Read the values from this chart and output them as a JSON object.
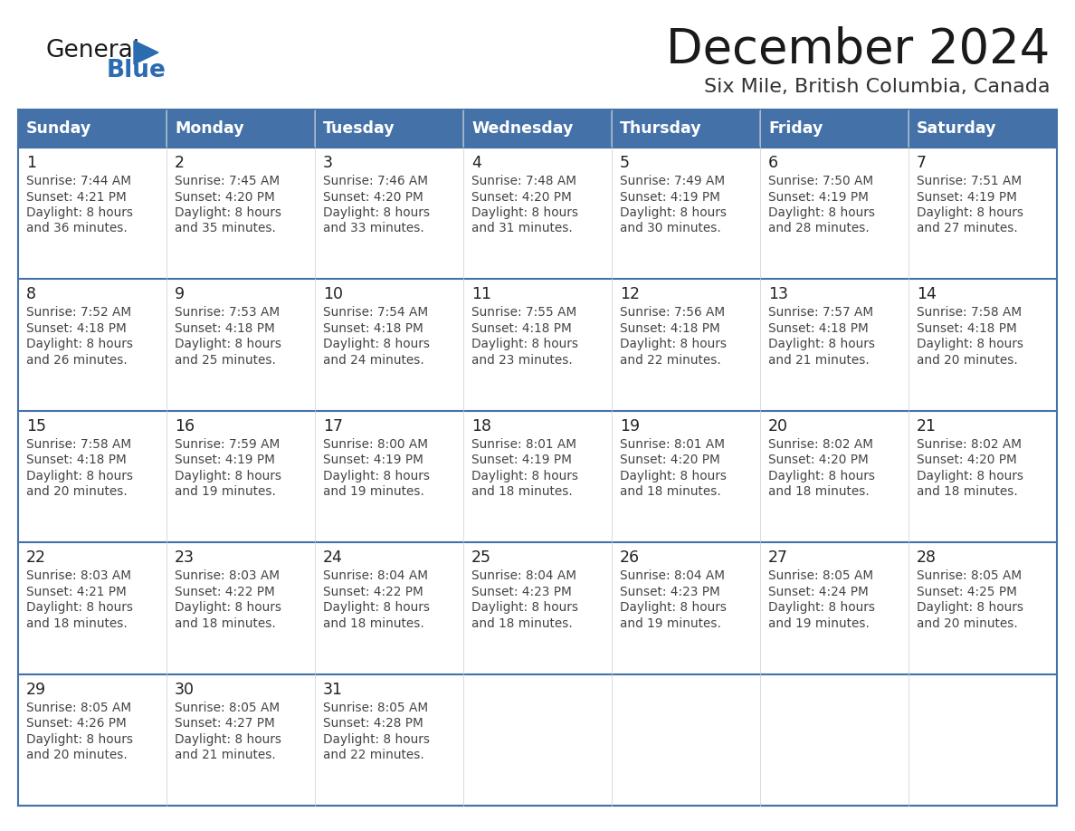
{
  "title": "December 2024",
  "subtitle": "Six Mile, British Columbia, Canada",
  "days_of_week": [
    "Sunday",
    "Monday",
    "Tuesday",
    "Wednesday",
    "Thursday",
    "Friday",
    "Saturday"
  ],
  "header_bg_color": "#4472A8",
  "header_text_color": "#FFFFFF",
  "cell_bg_white": "#FFFFFF",
  "cell_bg_light": "#F0F4F8",
  "day_num_color": "#222222",
  "info_text_color": "#444444",
  "border_color": "#4472A8",
  "row_divider_color": "#4472A8",
  "title_color": "#1a1a1a",
  "subtitle_color": "#333333",
  "logo_general_color": "#1a1a1a",
  "logo_blue_color": "#2B6CB0",
  "logo_triangle_color": "#2B6CB0",
  "calendar_data": [
    [
      {
        "day": 1,
        "sunrise": "7:44 AM",
        "sunset": "4:21 PM",
        "daylight": "8 hours and 36 minutes"
      },
      {
        "day": 2,
        "sunrise": "7:45 AM",
        "sunset": "4:20 PM",
        "daylight": "8 hours and 35 minutes"
      },
      {
        "day": 3,
        "sunrise": "7:46 AM",
        "sunset": "4:20 PM",
        "daylight": "8 hours and 33 minutes"
      },
      {
        "day": 4,
        "sunrise": "7:48 AM",
        "sunset": "4:20 PM",
        "daylight": "8 hours and 31 minutes"
      },
      {
        "day": 5,
        "sunrise": "7:49 AM",
        "sunset": "4:19 PM",
        "daylight": "8 hours and 30 minutes"
      },
      {
        "day": 6,
        "sunrise": "7:50 AM",
        "sunset": "4:19 PM",
        "daylight": "8 hours and 28 minutes"
      },
      {
        "day": 7,
        "sunrise": "7:51 AM",
        "sunset": "4:19 PM",
        "daylight": "8 hours and 27 minutes"
      }
    ],
    [
      {
        "day": 8,
        "sunrise": "7:52 AM",
        "sunset": "4:18 PM",
        "daylight": "8 hours and 26 minutes"
      },
      {
        "day": 9,
        "sunrise": "7:53 AM",
        "sunset": "4:18 PM",
        "daylight": "8 hours and 25 minutes"
      },
      {
        "day": 10,
        "sunrise": "7:54 AM",
        "sunset": "4:18 PM",
        "daylight": "8 hours and 24 minutes"
      },
      {
        "day": 11,
        "sunrise": "7:55 AM",
        "sunset": "4:18 PM",
        "daylight": "8 hours and 23 minutes"
      },
      {
        "day": 12,
        "sunrise": "7:56 AM",
        "sunset": "4:18 PM",
        "daylight": "8 hours and 22 minutes"
      },
      {
        "day": 13,
        "sunrise": "7:57 AM",
        "sunset": "4:18 PM",
        "daylight": "8 hours and 21 minutes"
      },
      {
        "day": 14,
        "sunrise": "7:58 AM",
        "sunset": "4:18 PM",
        "daylight": "8 hours and 20 minutes"
      }
    ],
    [
      {
        "day": 15,
        "sunrise": "7:58 AM",
        "sunset": "4:18 PM",
        "daylight": "8 hours and 20 minutes"
      },
      {
        "day": 16,
        "sunrise": "7:59 AM",
        "sunset": "4:19 PM",
        "daylight": "8 hours and 19 minutes"
      },
      {
        "day": 17,
        "sunrise": "8:00 AM",
        "sunset": "4:19 PM",
        "daylight": "8 hours and 19 minutes"
      },
      {
        "day": 18,
        "sunrise": "8:01 AM",
        "sunset": "4:19 PM",
        "daylight": "8 hours and 18 minutes"
      },
      {
        "day": 19,
        "sunrise": "8:01 AM",
        "sunset": "4:20 PM",
        "daylight": "8 hours and 18 minutes"
      },
      {
        "day": 20,
        "sunrise": "8:02 AM",
        "sunset": "4:20 PM",
        "daylight": "8 hours and 18 minutes"
      },
      {
        "day": 21,
        "sunrise": "8:02 AM",
        "sunset": "4:20 PM",
        "daylight": "8 hours and 18 minutes"
      }
    ],
    [
      {
        "day": 22,
        "sunrise": "8:03 AM",
        "sunset": "4:21 PM",
        "daylight": "8 hours and 18 minutes"
      },
      {
        "day": 23,
        "sunrise": "8:03 AM",
        "sunset": "4:22 PM",
        "daylight": "8 hours and 18 minutes"
      },
      {
        "day": 24,
        "sunrise": "8:04 AM",
        "sunset": "4:22 PM",
        "daylight": "8 hours and 18 minutes"
      },
      {
        "day": 25,
        "sunrise": "8:04 AM",
        "sunset": "4:23 PM",
        "daylight": "8 hours and 18 minutes"
      },
      {
        "day": 26,
        "sunrise": "8:04 AM",
        "sunset": "4:23 PM",
        "daylight": "8 hours and 19 minutes"
      },
      {
        "day": 27,
        "sunrise": "8:05 AM",
        "sunset": "4:24 PM",
        "daylight": "8 hours and 19 minutes"
      },
      {
        "day": 28,
        "sunrise": "8:05 AM",
        "sunset": "4:25 PM",
        "daylight": "8 hours and 20 minutes"
      }
    ],
    [
      {
        "day": 29,
        "sunrise": "8:05 AM",
        "sunset": "4:26 PM",
        "daylight": "8 hours and 20 minutes"
      },
      {
        "day": 30,
        "sunrise": "8:05 AM",
        "sunset": "4:27 PM",
        "daylight": "8 hours and 21 minutes"
      },
      {
        "day": 31,
        "sunrise": "8:05 AM",
        "sunset": "4:28 PM",
        "daylight": "8 hours and 22 minutes"
      },
      null,
      null,
      null,
      null
    ]
  ]
}
